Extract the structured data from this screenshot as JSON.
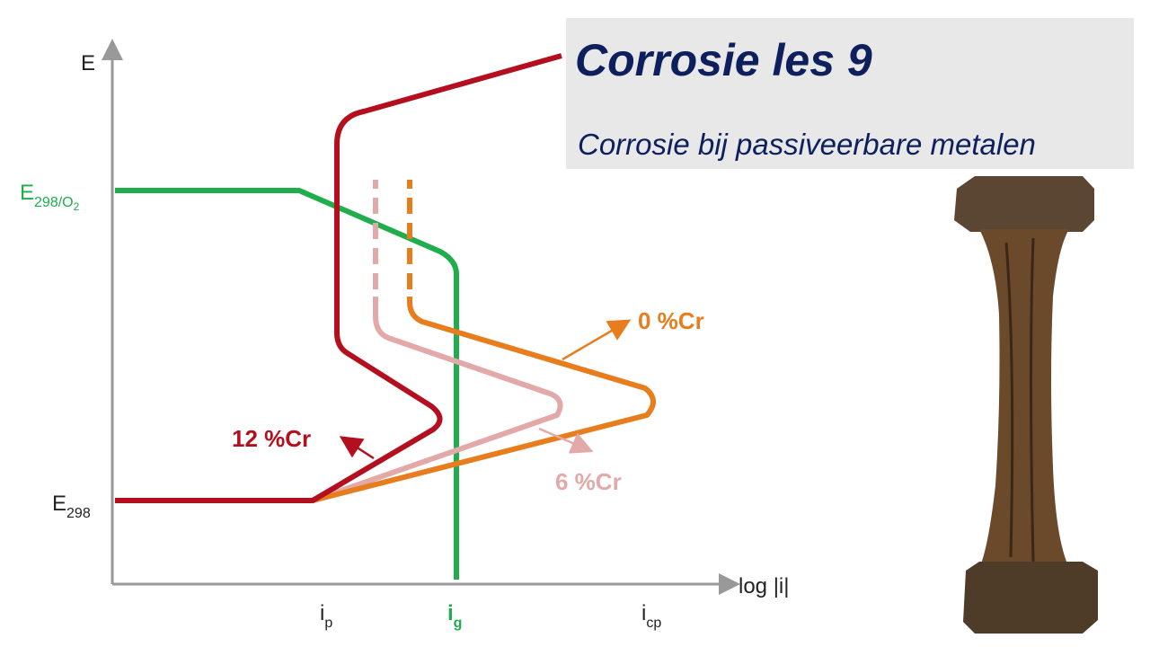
{
  "header": {
    "title": "Corrosie les 9",
    "subtitle": "Corrosie bij passiveerbare metalen"
  },
  "diagram": {
    "y_axis": "E",
    "x_axis": "log |i|",
    "y_labels": [
      {
        "base": "E",
        "sub": "298/O",
        "sub2": "2"
      },
      {
        "base": "E",
        "sub": "298"
      }
    ],
    "x_labels": [
      {
        "base": "i",
        "sub": "p"
      },
      {
        "base": "i",
        "sub": "g"
      },
      {
        "base": "i",
        "sub": "cp"
      }
    ],
    "curves": [
      {
        "label": "12 %Cr"
      },
      {
        "label": "6 %Cr"
      },
      {
        "label": "0 %Cr"
      }
    ]
  }
}
